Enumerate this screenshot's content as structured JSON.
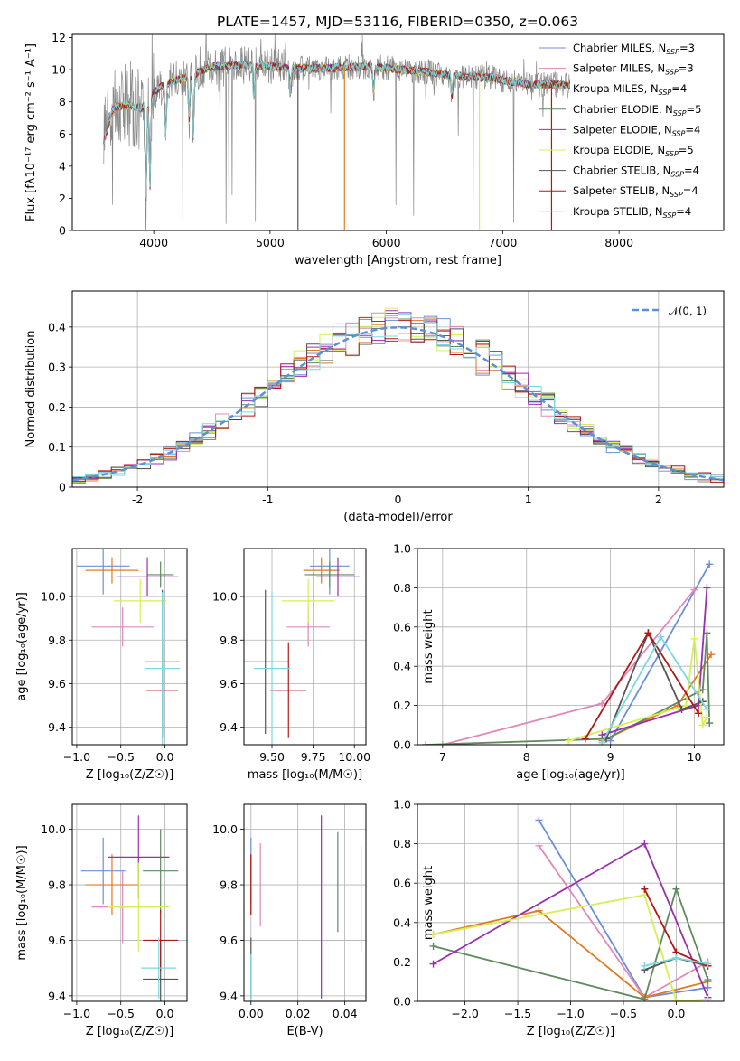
{
  "title": "PLATE=1457, MJD=53116, FIBERID=0350, z=0.063",
  "models": [
    {
      "label": "Chabrier MILES, N",
      "sub": "SSP",
      "tail": "=3",
      "color": "#6b8fd8"
    },
    {
      "label": "Salpeter MILES, N",
      "sub": "SSP",
      "tail": "=3",
      "color": "#e088bb"
    },
    {
      "label": "Kroupa MILES, N",
      "sub": "SSP",
      "tail": "=4",
      "color": "#e07b22"
    },
    {
      "label": "Chabrier ELODIE, N",
      "sub": "SSP",
      "tail": "=5",
      "color": "#5e8a5e"
    },
    {
      "label": "Salpeter ELODIE, N",
      "sub": "SSP",
      "tail": "=4",
      "color": "#9a2fb0"
    },
    {
      "label": "Kroupa ELODIE, N",
      "sub": "SSP",
      "tail": "=5",
      "color": "#d6ef55"
    },
    {
      "label": "Chabrier STELIB, N",
      "sub": "SSP",
      "tail": "=4",
      "color": "#555555"
    },
    {
      "label": "Salpeter STELIB, N",
      "sub": "SSP",
      "tail": "=4",
      "color": "#b01818"
    },
    {
      "label": "Kroupa STELIB, N",
      "sub": "SSP",
      "tail": "=4",
      "color": "#7ad9df"
    }
  ],
  "chart_data": [
    {
      "type": "line",
      "id": "spectrum",
      "xlabel": "wavelength [Angstrom, rest frame]",
      "ylabel": "Flux [fλ10⁻¹⁷ erg cm⁻² s⁻¹ A⁻¹]",
      "xlim": [
        3300,
        8900
      ],
      "ylim": [
        0,
        12.2
      ],
      "xticks": [
        4000,
        5000,
        6000,
        7000,
        8000
      ],
      "yticks": [
        0,
        2,
        4,
        6,
        8,
        10,
        12
      ],
      "data_color": "#888888",
      "data_x_range": [
        3570,
        7580
      ],
      "continuum": [
        [
          3570,
          5.5
        ],
        [
          3650,
          7.6
        ],
        [
          3750,
          7.8
        ],
        [
          3900,
          7.6
        ],
        [
          4000,
          8.6
        ],
        [
          4100,
          9.1
        ],
        [
          4300,
          9.6
        ],
        [
          4500,
          10.2
        ],
        [
          4800,
          10.3
        ],
        [
          5000,
          10.2
        ],
        [
          5200,
          10.1
        ],
        [
          5500,
          10.1
        ],
        [
          5800,
          10.2
        ],
        [
          6000,
          10.1
        ],
        [
          6300,
          9.9
        ],
        [
          6600,
          9.6
        ],
        [
          6900,
          9.5
        ],
        [
          7200,
          9.1
        ],
        [
          7400,
          9.1
        ],
        [
          7580,
          9.0
        ]
      ],
      "absorption": [
        [
          3934,
          2.6
        ],
        [
          3968,
          3.2
        ],
        [
          4102,
          6.5
        ],
        [
          4305,
          7.1
        ],
        [
          4340,
          6.0
        ],
        [
          4861,
          7.9
        ],
        [
          5175,
          8.2
        ],
        [
          5890,
          8.4
        ],
        [
          6563,
          8.6
        ]
      ],
      "dropouts": [
        [
          5240,
          "#555555"
        ],
        [
          5640,
          "#e07b22"
        ],
        [
          6800,
          "#d6ef55"
        ],
        [
          7420,
          "#b01818"
        ]
      ],
      "legend": "top-right"
    },
    {
      "type": "histogram",
      "id": "residuals",
      "xlabel": "(data-model)/error",
      "ylabel": "Normed distribution",
      "xlim": [
        -2.5,
        2.5
      ],
      "ylim": [
        0,
        0.49
      ],
      "xticks": [
        -2,
        -1,
        0,
        1,
        2
      ],
      "yticks": [
        0.0,
        0.1,
        0.2,
        0.3,
        0.4
      ],
      "bin_width": 0.1,
      "reference": {
        "name": "𝒩(0, 1)",
        "mean": 0,
        "sd": 1,
        "color": "#5b8fd8"
      },
      "legend": "top-right"
    },
    {
      "type": "errorbar",
      "id": "age_vs_Z",
      "xlabel": "Z [log₁₀(Z/Z☉)]",
      "ylabel": "age  [log₁₀(age/yr)]",
      "xlim": [
        -1.05,
        0.25
      ],
      "ylim": [
        9.32,
        10.22
      ],
      "xticks": [
        -1.0,
        -0.5,
        0.0
      ],
      "xticklabels": [
        "−1.0",
        "−0.5",
        "0.0"
      ],
      "yticks": [
        9.4,
        9.6,
        9.8,
        10.0
      ],
      "yticklabels": [
        "9.4",
        "9.6",
        "9.8",
        "10.0"
      ],
      "points": [
        {
          "m": 0,
          "x": -0.7,
          "xe": 0.3,
          "y": 10.14,
          "ye": 0.13
        },
        {
          "m": 1,
          "x": -0.48,
          "xe": 0.35,
          "y": 9.86,
          "ye": 0.09
        },
        {
          "m": 2,
          "x": -0.6,
          "xe": 0.3,
          "y": 10.12,
          "ye": 0.06
        },
        {
          "m": 3,
          "x": -0.05,
          "xe": 0.15,
          "y": 10.1,
          "ye": 0.06
        },
        {
          "m": 4,
          "x": -0.2,
          "xe": 0.35,
          "y": 10.09,
          "ye": 0.09
        },
        {
          "m": 5,
          "x": -0.28,
          "xe": 0.3,
          "y": 9.98,
          "ye": 0.1
        },
        {
          "m": 6,
          "x": -0.03,
          "xe": 0.2,
          "y": 9.7,
          "ye": 0.33
        },
        {
          "m": 7,
          "x": -0.03,
          "xe": 0.18,
          "y": 9.57,
          "ye": 0.22
        },
        {
          "m": 8,
          "x": -0.03,
          "xe": 0.2,
          "y": 9.67,
          "ye": 0.35
        }
      ]
    },
    {
      "type": "errorbar",
      "id": "age_vs_mass",
      "xlabel": "mass [log₁₀(M/M☉)]",
      "ylabel": "",
      "xlim": [
        9.33,
        10.07
      ],
      "ylim": [
        9.32,
        10.22
      ],
      "xticks": [
        9.5,
        9.75,
        10.0
      ],
      "xticklabels": [
        "9.50",
        "9.75",
        "10.00"
      ],
      "yticks": [
        9.4,
        9.6,
        9.8,
        10.0
      ],
      "yticklabels": [
        "9.4",
        "9.6",
        "9.8",
        "10.0"
      ],
      "points": [
        {
          "m": 0,
          "x": 9.85,
          "xe": 0.12,
          "y": 10.14,
          "ye": 0.13
        },
        {
          "m": 1,
          "x": 9.72,
          "xe": 0.13,
          "y": 9.86,
          "ye": 0.09
        },
        {
          "m": 2,
          "x": 9.8,
          "xe": 0.11,
          "y": 10.12,
          "ye": 0.06
        },
        {
          "m": 3,
          "x": 9.85,
          "xe": 0.15,
          "y": 10.1,
          "ye": 0.06
        },
        {
          "m": 4,
          "x": 9.9,
          "xe": 0.13,
          "y": 10.09,
          "ye": 0.09
        },
        {
          "m": 5,
          "x": 9.72,
          "xe": 0.16,
          "y": 9.98,
          "ye": 0.1
        },
        {
          "m": 6,
          "x": 9.46,
          "xe": 0.14,
          "y": 9.7,
          "ye": 0.33
        },
        {
          "m": 7,
          "x": 9.6,
          "xe": 0.11,
          "y": 9.57,
          "ye": 0.22
        },
        {
          "m": 8,
          "x": 9.5,
          "xe": 0.11,
          "y": 9.67,
          "ye": 0.35
        }
      ]
    },
    {
      "type": "line",
      "id": "weight_vs_age",
      "xlabel": "age  [log₁₀(age/yr)]",
      "ylabel": "mass weight",
      "xlim": [
        6.7,
        10.35
      ],
      "ylim": [
        0,
        1.0
      ],
      "xticks": [
        7,
        8,
        9,
        10
      ],
      "xticklabels": [
        "7",
        "8",
        "9",
        "10"
      ],
      "yticks": [
        0,
        0.2,
        0.4,
        0.6,
        0.8,
        1.0
      ],
      "yticklabels": [
        "0.0",
        "0.2",
        "0.4",
        "0.6",
        "0.8",
        "1.0"
      ],
      "series": [
        {
          "m": 0,
          "x": [
            9.0,
            10.18
          ],
          "y": [
            0.02,
            0.92
          ]
        },
        {
          "m": 1,
          "x": [
            7.0,
            8.9,
            10.0
          ],
          "y": [
            0.0,
            0.21,
            0.79
          ]
        },
        {
          "m": 2,
          "x": [
            8.9,
            9.8,
            10.2
          ],
          "y": [
            0.02,
            0.2,
            0.46
          ]
        },
        {
          "m": 3,
          "x": [
            6.8,
            8.95,
            10.1,
            10.15,
            10.18
          ],
          "y": [
            0.0,
            0.03,
            0.28,
            0.57,
            0.11
          ]
        },
        {
          "m": 4,
          "x": [
            8.9,
            10.05,
            10.15
          ],
          "y": [
            0.05,
            0.2,
            0.8
          ]
        },
        {
          "m": 5,
          "x": [
            8.5,
            9.9,
            10.0,
            10.1,
            10.15
          ],
          "y": [
            0.02,
            0.2,
            0.54,
            0.1,
            0.14
          ]
        },
        {
          "m": 6,
          "x": [
            8.95,
            9.45,
            9.85,
            10.1
          ],
          "y": [
            0.03,
            0.57,
            0.18,
            0.22
          ]
        },
        {
          "m": 7,
          "x": [
            8.7,
            9.45,
            10.05
          ],
          "y": [
            0.03,
            0.57,
            0.16
          ]
        },
        {
          "m": 8,
          "x": [
            8.9,
            9.6,
            10.15
          ],
          "y": [
            0.01,
            0.55,
            0.18
          ]
        }
      ]
    },
    {
      "type": "errorbar",
      "id": "mass_vs_Z",
      "xlabel": "Z [log₁₀(Z/Z☉)]",
      "ylabel": "mass [log₁₀(M/M☉)]",
      "xlim": [
        -1.05,
        0.25
      ],
      "ylim": [
        9.38,
        10.09
      ],
      "xticks": [
        -1.0,
        -0.5,
        0.0
      ],
      "xticklabels": [
        "−1.0",
        "−0.5",
        "0.0"
      ],
      "yticks": [
        9.4,
        9.6,
        9.8,
        10.0
      ],
      "yticklabels": [
        "9.4",
        "9.6",
        "9.8",
        "10.0"
      ],
      "points": [
        {
          "m": 0,
          "x": -0.7,
          "xe": 0.25,
          "y": 9.85,
          "ye": 0.12
        },
        {
          "m": 1,
          "x": -0.48,
          "xe": 0.35,
          "y": 9.72,
          "ye": 0.13
        },
        {
          "m": 2,
          "x": -0.6,
          "xe": 0.3,
          "y": 9.8,
          "ye": 0.11
        },
        {
          "m": 3,
          "x": -0.05,
          "xe": 0.2,
          "y": 9.85,
          "ye": 0.15
        },
        {
          "m": 4,
          "x": -0.3,
          "xe": 0.35,
          "y": 9.9,
          "ye": 0.15
        },
        {
          "m": 5,
          "x": -0.3,
          "xe": 0.35,
          "y": 9.72,
          "ye": 0.16
        },
        {
          "m": 6,
          "x": -0.05,
          "xe": 0.2,
          "y": 9.46,
          "ye": 0.14
        },
        {
          "m": 7,
          "x": -0.05,
          "xe": 0.2,
          "y": 9.6,
          "ye": 0.11
        },
        {
          "m": 8,
          "x": -0.07,
          "xe": 0.2,
          "y": 9.5,
          "ye": 0.11
        }
      ]
    },
    {
      "type": "errorbar",
      "id": "mass_vs_ebv",
      "xlabel": "E(B-V)",
      "ylabel": "",
      "xlim": [
        -0.003,
        0.049
      ],
      "ylim": [
        9.38,
        10.09
      ],
      "xticks": [
        0.0,
        0.02,
        0.04
      ],
      "xticklabels": [
        "0.00",
        "0.02",
        "0.04"
      ],
      "yticks": [
        9.4,
        9.6,
        9.8,
        10.0
      ],
      "yticklabels": [
        "9.4",
        "9.6",
        "9.8",
        "10.0"
      ],
      "points": [
        {
          "m": 0,
          "x": 0.0,
          "xe": 0,
          "y": 9.85,
          "ye": 0.12
        },
        {
          "m": 1,
          "x": 0.004,
          "xe": 0,
          "y": 9.8,
          "ye": 0.15
        },
        {
          "m": 2,
          "x": 0.0,
          "xe": 0,
          "y": 9.8,
          "ye": 0.11
        },
        {
          "m": 3,
          "x": 0.037,
          "xe": 0,
          "y": 9.81,
          "ye": 0.18
        },
        {
          "m": 4,
          "x": 0.03,
          "xe": 0,
          "y": 9.72,
          "ye": 0.33
        },
        {
          "m": 5,
          "x": 0.047,
          "xe": 0,
          "y": 9.75,
          "ye": 0.19
        },
        {
          "m": 6,
          "x": 0.0,
          "xe": 0,
          "y": 9.5,
          "ye": 0.11
        },
        {
          "m": 7,
          "x": 0.0,
          "xe": 0,
          "y": 9.8,
          "ye": 0.11
        },
        {
          "m": 8,
          "x": 0.0,
          "xe": 0,
          "y": 9.45,
          "ye": 0.1
        }
      ]
    },
    {
      "type": "line",
      "id": "weight_vs_Z",
      "xlabel": "Z [log₁₀(Z/Z☉)]",
      "ylabel": "mass weight",
      "xlim": [
        -2.45,
        0.45
      ],
      "ylim": [
        0,
        1.0
      ],
      "xticks": [
        -2.0,
        -1.5,
        -1.0,
        -0.5,
        0.0
      ],
      "xticklabels": [
        "−2.0",
        "−1.5",
        "−1.0",
        "−0.5",
        "0.0"
      ],
      "yticks": [
        0,
        0.2,
        0.4,
        0.6,
        0.8,
        1.0
      ],
      "yticklabels": [
        "0.0",
        "0.2",
        "0.4",
        "0.6",
        "0.8",
        "1.0"
      ],
      "series": [
        {
          "m": 0,
          "x": [
            -1.3,
            -0.3,
            0.3
          ],
          "y": [
            0.92,
            0.02,
            0.07
          ]
        },
        {
          "m": 1,
          "x": [
            -1.3,
            -0.3,
            0.3
          ],
          "y": [
            0.79,
            0.02,
            0.2
          ]
        },
        {
          "m": 2,
          "x": [
            -2.3,
            -1.3,
            -0.3,
            0.3
          ],
          "y": [
            0.34,
            0.46,
            0.02,
            0.1
          ]
        },
        {
          "m": 3,
          "x": [
            -2.3,
            -0.3,
            0.0,
            0.3
          ],
          "y": [
            0.28,
            0.01,
            0.57,
            0.11
          ]
        },
        {
          "m": 4,
          "x": [
            -2.3,
            -0.3,
            0.3
          ],
          "y": [
            0.19,
            0.8,
            0.02
          ]
        },
        {
          "m": 5,
          "x": [
            -2.3,
            -0.3,
            0.0,
            0.3
          ],
          "y": [
            0.34,
            0.54,
            0.0,
            0.01
          ]
        },
        {
          "m": 6,
          "x": [
            -0.3,
            0.0,
            0.3
          ],
          "y": [
            0.16,
            0.22,
            0.18
          ]
        },
        {
          "m": 7,
          "x": [
            -0.3,
            0.0,
            0.3
          ],
          "y": [
            0.57,
            0.25,
            0.18
          ]
        },
        {
          "m": 8,
          "x": [
            -0.3,
            0.0,
            0.3
          ],
          "y": [
            0.18,
            0.22,
            0.19
          ]
        }
      ]
    }
  ]
}
